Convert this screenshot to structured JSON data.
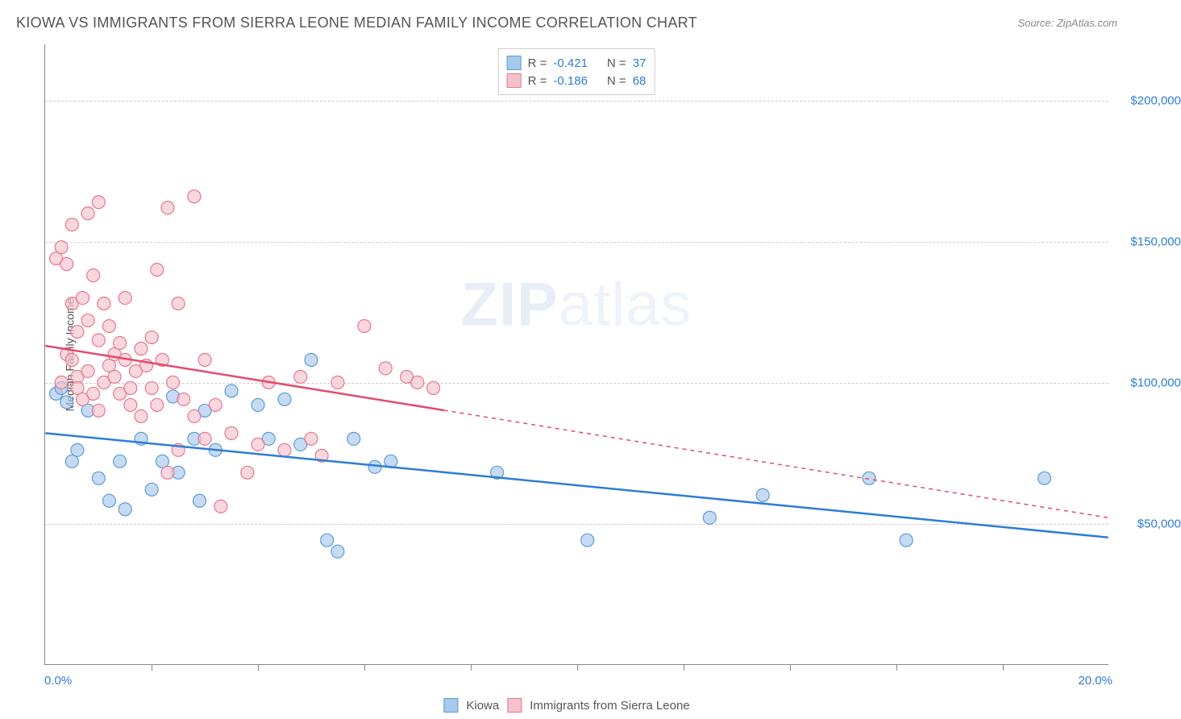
{
  "header": {
    "title": "KIOWA VS IMMIGRANTS FROM SIERRA LEONE MEDIAN FAMILY INCOME CORRELATION CHART",
    "source": "Source: ZipAtlas.com"
  },
  "watermark": {
    "prefix": "ZIP",
    "suffix": "atlas"
  },
  "chart": {
    "type": "scatter",
    "xlim": [
      0,
      20
    ],
    "ylim": [
      0,
      220000
    ],
    "ylabel": "Median Family Income",
    "x_axis_left_label": "0.0%",
    "x_axis_right_label": "20.0%",
    "y_ticks": [
      {
        "value": 50000,
        "label": "$50,000"
      },
      {
        "value": 100000,
        "label": "$100,000"
      },
      {
        "value": 150000,
        "label": "$150,000"
      },
      {
        "value": 200000,
        "label": "$200,000"
      }
    ],
    "x_tick_positions": [
      2,
      4,
      6,
      8,
      10,
      12,
      14,
      16,
      18
    ],
    "grid_color": "#cccccc",
    "axis_color": "#888888",
    "background_color": "#ffffff",
    "marker_radius": 8,
    "marker_stroke_width": 1.2,
    "series": [
      {
        "name": "Kiowa",
        "fill_color": "#a8c8ec",
        "stroke_color": "#5b9bd5",
        "line_color": "#2e7cd6",
        "r_value": "-0.421",
        "n_value": "37",
        "trend": {
          "x1": 0,
          "y1": 82000,
          "x2": 20,
          "y2": 45000,
          "solid_until_x": 20
        },
        "points": [
          [
            0.2,
            96000
          ],
          [
            0.3,
            98000
          ],
          [
            0.4,
            93000
          ],
          [
            0.5,
            72000
          ],
          [
            0.6,
            76000
          ],
          [
            0.8,
            90000
          ],
          [
            1.0,
            66000
          ],
          [
            1.2,
            58000
          ],
          [
            1.4,
            72000
          ],
          [
            1.5,
            55000
          ],
          [
            1.8,
            80000
          ],
          [
            2.0,
            62000
          ],
          [
            2.2,
            72000
          ],
          [
            2.4,
            95000
          ],
          [
            2.5,
            68000
          ],
          [
            2.8,
            80000
          ],
          [
            2.9,
            58000
          ],
          [
            3.0,
            90000
          ],
          [
            3.2,
            76000
          ],
          [
            3.5,
            97000
          ],
          [
            4.0,
            92000
          ],
          [
            4.2,
            80000
          ],
          [
            4.5,
            94000
          ],
          [
            4.8,
            78000
          ],
          [
            5.0,
            108000
          ],
          [
            5.3,
            44000
          ],
          [
            5.5,
            40000
          ],
          [
            5.8,
            80000
          ],
          [
            6.2,
            70000
          ],
          [
            6.5,
            72000
          ],
          [
            8.5,
            68000
          ],
          [
            10.2,
            44000
          ],
          [
            12.5,
            52000
          ],
          [
            13.5,
            60000
          ],
          [
            15.5,
            66000
          ],
          [
            16.2,
            44000
          ],
          [
            18.8,
            66000
          ]
        ]
      },
      {
        "name": "Immigrants from Sierra Leone",
        "fill_color": "#f4c2cd",
        "stroke_color": "#e57890",
        "line_color": "#e34b6e",
        "r_value": "-0.186",
        "n_value": "68",
        "trend": {
          "x1": 0,
          "y1": 113000,
          "x2": 20,
          "y2": 52000,
          "solid_until_x": 7.5
        },
        "points": [
          [
            0.2,
            144000
          ],
          [
            0.3,
            148000
          ],
          [
            0.3,
            100000
          ],
          [
            0.4,
            110000
          ],
          [
            0.4,
            142000
          ],
          [
            0.5,
            156000
          ],
          [
            0.5,
            108000
          ],
          [
            0.5,
            128000
          ],
          [
            0.6,
            118000
          ],
          [
            0.6,
            102000
          ],
          [
            0.6,
            98000
          ],
          [
            0.7,
            94000
          ],
          [
            0.7,
            130000
          ],
          [
            0.8,
            160000
          ],
          [
            0.8,
            122000
          ],
          [
            0.8,
            104000
          ],
          [
            0.9,
            96000
          ],
          [
            0.9,
            138000
          ],
          [
            1.0,
            115000
          ],
          [
            1.0,
            164000
          ],
          [
            1.0,
            90000
          ],
          [
            1.1,
            100000
          ],
          [
            1.1,
            128000
          ],
          [
            1.2,
            106000
          ],
          [
            1.2,
            120000
          ],
          [
            1.3,
            110000
          ],
          [
            1.3,
            102000
          ],
          [
            1.4,
            96000
          ],
          [
            1.4,
            114000
          ],
          [
            1.5,
            108000
          ],
          [
            1.5,
            130000
          ],
          [
            1.6,
            92000
          ],
          [
            1.6,
            98000
          ],
          [
            1.7,
            104000
          ],
          [
            1.8,
            112000
          ],
          [
            1.8,
            88000
          ],
          [
            1.9,
            106000
          ],
          [
            2.0,
            98000
          ],
          [
            2.0,
            116000
          ],
          [
            2.1,
            140000
          ],
          [
            2.1,
            92000
          ],
          [
            2.2,
            108000
          ],
          [
            2.3,
            68000
          ],
          [
            2.3,
            162000
          ],
          [
            2.4,
            100000
          ],
          [
            2.5,
            76000
          ],
          [
            2.5,
            128000
          ],
          [
            2.6,
            94000
          ],
          [
            2.8,
            88000
          ],
          [
            2.8,
            166000
          ],
          [
            3.0,
            108000
          ],
          [
            3.0,
            80000
          ],
          [
            3.2,
            92000
          ],
          [
            3.3,
            56000
          ],
          [
            3.5,
            82000
          ],
          [
            3.8,
            68000
          ],
          [
            4.0,
            78000
          ],
          [
            4.2,
            100000
          ],
          [
            4.5,
            76000
          ],
          [
            4.8,
            102000
          ],
          [
            5.0,
            80000
          ],
          [
            5.2,
            74000
          ],
          [
            5.5,
            100000
          ],
          [
            6.0,
            120000
          ],
          [
            6.4,
            105000
          ],
          [
            6.8,
            102000
          ],
          [
            7.0,
            100000
          ],
          [
            7.3,
            98000
          ]
        ]
      }
    ],
    "legend_top": {
      "r_label": "R",
      "n_label": "N",
      "equals": "="
    },
    "legend_bottom": {
      "items": [
        "Kiowa",
        "Immigrants from Sierra Leone"
      ]
    }
  }
}
